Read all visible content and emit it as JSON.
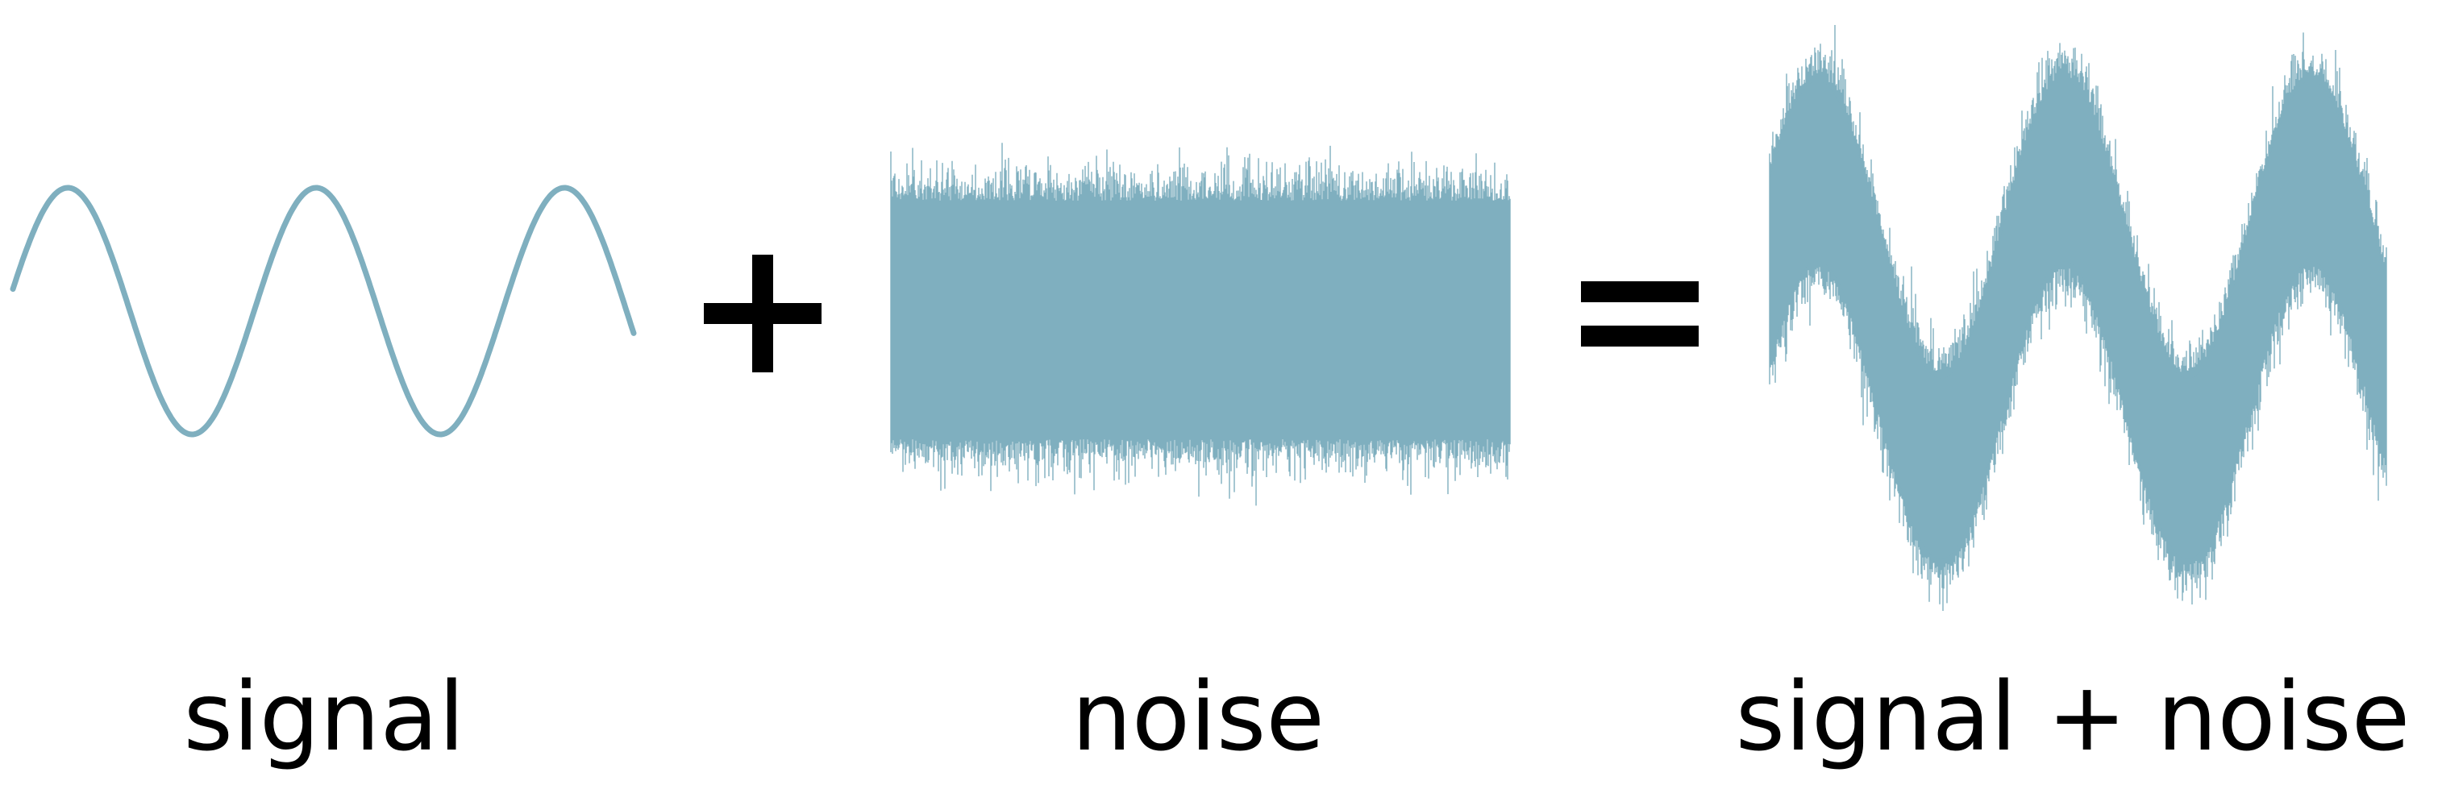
{
  "colors": {
    "wave": "#7fafbf",
    "operator": "#000000",
    "text": "#000000",
    "background": "#ffffff"
  },
  "panels": {
    "signal": {
      "label": "signal",
      "cycles": 2.5
    },
    "noise": {
      "label": "noise"
    },
    "sum": {
      "label": "signal + noise",
      "cycles": 2.5
    }
  },
  "operators": {
    "plus": "plus-icon",
    "equals": "equals-icon"
  }
}
